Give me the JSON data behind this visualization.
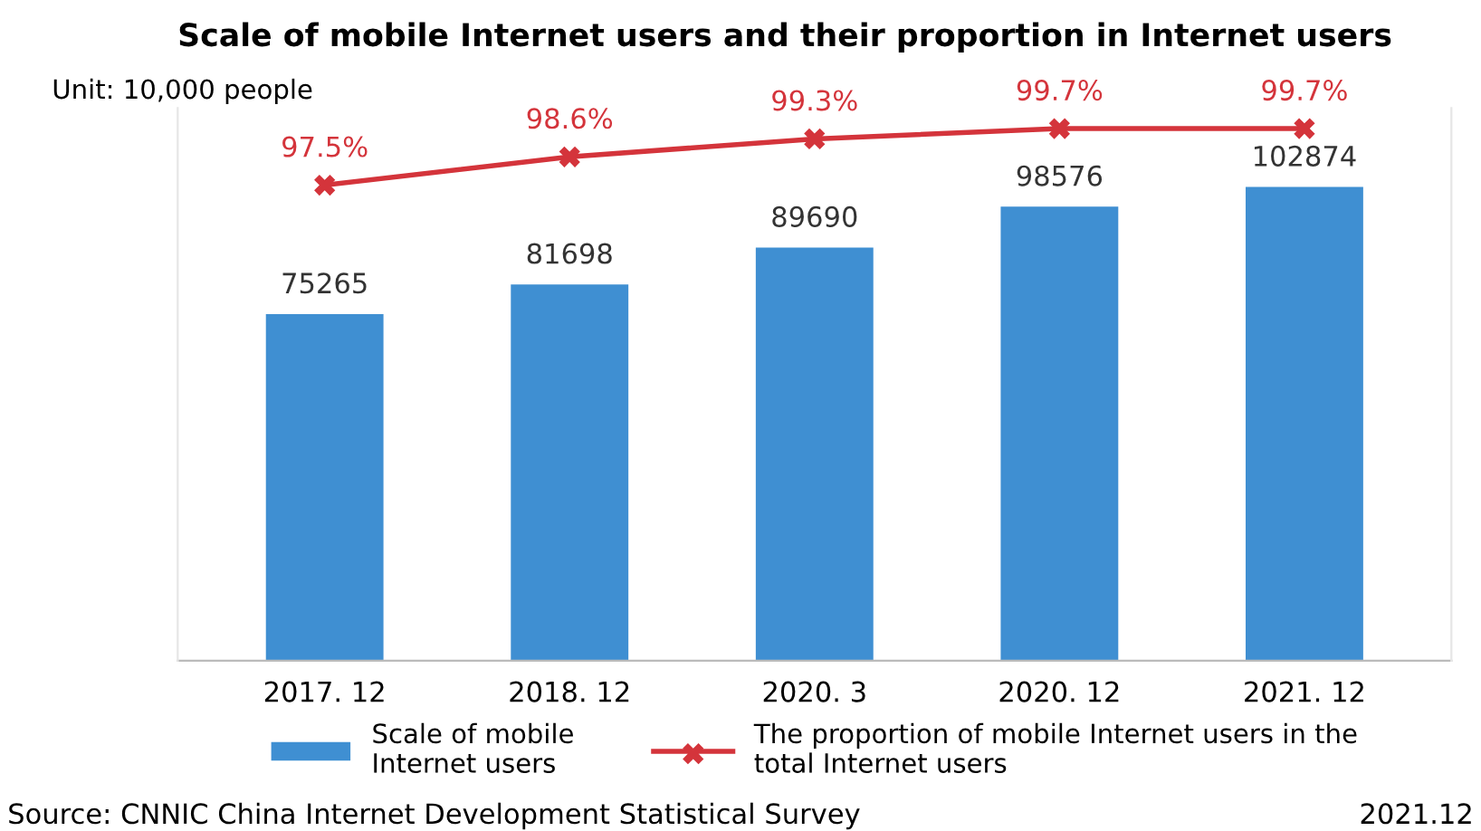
{
  "chart_data": {
    "type": "bar",
    "title": "Scale of mobile Internet users and their proportion in Internet users",
    "categories": [
      "2017. 12",
      "2018. 12",
      "2020. 3",
      "2020. 12",
      "2021. 12"
    ],
    "series": [
      {
        "name": "Scale of mobile\nInternet users",
        "type": "bar",
        "color": "#3f8fd2",
        "values": [
          75265,
          81698,
          89690,
          98576,
          102874
        ]
      },
      {
        "name": "The proportion of mobile Internet users in the\ntotal Internet users",
        "type": "line",
        "axis": "y2",
        "color": "#d4343b",
        "values": [
          97.5,
          98.6,
          99.3,
          99.7,
          99.7
        ],
        "value_labels": [
          "97.5%",
          "98.6%",
          "99.3%",
          "99.7%",
          "99.7%"
        ]
      }
    ],
    "ylim": [
      0,
      120000
    ],
    "y2lim": [
      79,
      100.5
    ],
    "tick_labels": "x",
    "data_labels": true,
    "grid": false,
    "legend": "bottom",
    "marker": "cross",
    "line_style": "solid",
    "annotations": [
      "Unit: 10,000 people",
      "Source: CNNIC China Internet Development Statistical Survey",
      "2021.12"
    ]
  }
}
